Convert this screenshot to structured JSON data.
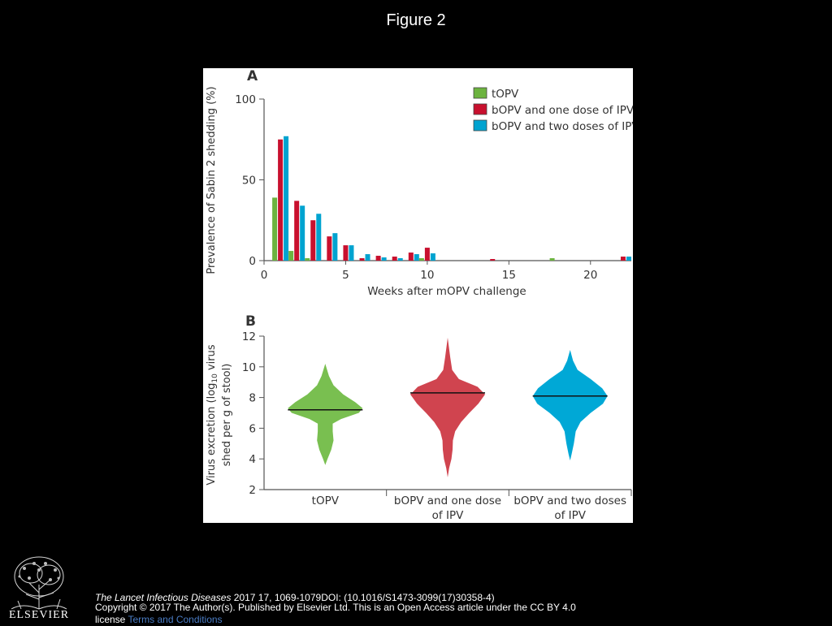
{
  "slide": {
    "title": "Figure 2"
  },
  "panel_labels": {
    "a": "A",
    "b": "B"
  },
  "colors": {
    "topv": "#6cb33f",
    "bopv_one_ipv": "#c8102e",
    "bopv_two_ipv": "#00a3d0",
    "topv_violin": "#79bf50",
    "bopv_one_violin": "#d0444f",
    "bopv_two_violin": "#00a8d6"
  },
  "chart_data": [
    {
      "type": "bar",
      "panel": "A",
      "xlabel": "Weeks after mOPV challenge",
      "ylabel": "Prevalence of Sabin 2 shedding (%)",
      "xlim": [
        0,
        22.5
      ],
      "ylim": [
        0,
        100
      ],
      "x_ticks": [
        0,
        5,
        10,
        15,
        20
      ],
      "y_ticks": [
        0,
        50,
        100
      ],
      "legend_position": "top-right",
      "categories": [
        1,
        2,
        3,
        4,
        5,
        6,
        7,
        8,
        9,
        10,
        14,
        18,
        22
      ],
      "series": [
        {
          "name": "tOPV",
          "color": "#6cb33f",
          "values": [
            39,
            6,
            1.5,
            0,
            0,
            0,
            0,
            0,
            0,
            1.5,
            0,
            1.5,
            0
          ]
        },
        {
          "name": "bOPV and one dose of IPV",
          "color": "#c8102e",
          "values": [
            75,
            37,
            25,
            15,
            9.5,
            1.5,
            3,
            2.5,
            5,
            8,
            1,
            0,
            2.5
          ]
        },
        {
          "name": "bOPV and two doses of IPV",
          "color": "#00a3d0",
          "values": [
            77,
            34,
            29,
            17,
            9.5,
            4,
            2,
            1.5,
            4,
            4.5,
            0,
            0,
            2.5
          ]
        }
      ]
    },
    {
      "type": "violin",
      "panel": "B",
      "ylabel_prefix": "Virus excretion (log",
      "ylabel_sub": "10",
      "ylabel_suffix": " virus",
      "ylabel_line2": "shed per g of stool)",
      "ylim": [
        2,
        12
      ],
      "y_ticks": [
        2,
        4,
        6,
        8,
        10,
        12
      ],
      "groups": [
        {
          "name": "tOPV",
          "median": 7.2,
          "min": 3.6,
          "max": 10.2,
          "color": "#79bf50"
        },
        {
          "name_line1": "bOPV and one dose",
          "name_line2": "of IPV",
          "median": 8.3,
          "min": 2.8,
          "max": 11.9,
          "color": "#d0444f"
        },
        {
          "name_line1": "bOPV and two doses",
          "name_line2": "of IPV",
          "median": 8.1,
          "min": 3.9,
          "max": 11.1,
          "color": "#00a8d6"
        }
      ]
    }
  ],
  "footer": {
    "journal": "The Lancet Infectious Diseases",
    "citation": " 2017 17, 1069-1079DOI: (10.1016/S1473-3099(17)30358-4)",
    "copyright": "Copyright © 2017 The Author(s). Published by Elsevier Ltd. This is an Open Access article under the CC BY 4.0 license ",
    "terms_link": "Terms and Conditions",
    "publisher": "ELSEVIER"
  }
}
